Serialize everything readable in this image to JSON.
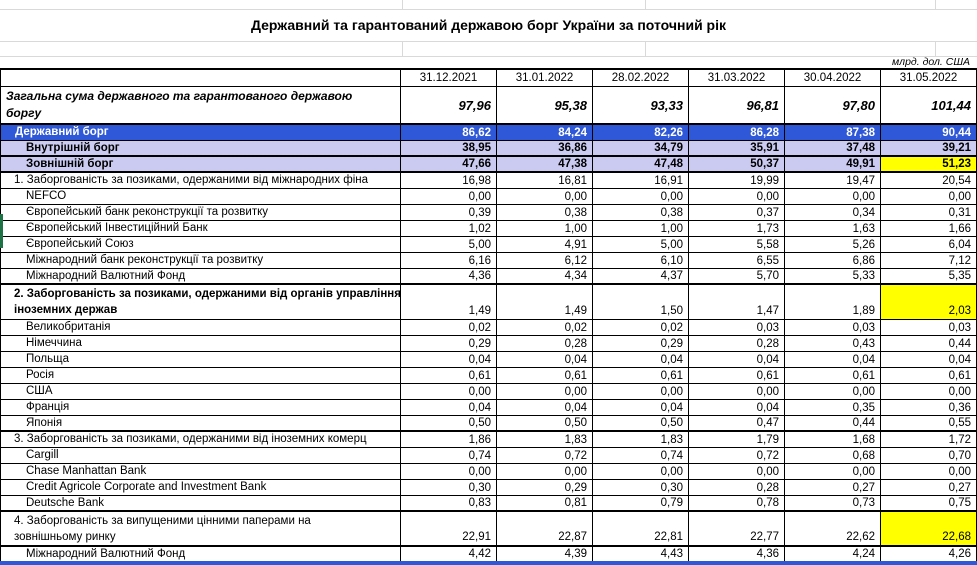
{
  "meta": {
    "title": "Державний та гарантований державою борг України за поточний рік",
    "units": "млрд. дол. США"
  },
  "colors": {
    "accent_blue": "#2F58D8",
    "lavender": "#CBCBF2",
    "highlight_yellow": "#FFFF00"
  },
  "chart_data": {
    "type": "table",
    "title": "Державний та гарантований державою борг України за поточний рік",
    "columns": [
      "31.12.2021",
      "31.01.2022",
      "28.02.2022",
      "31.03.2022",
      "30.04.2022",
      "31.05.2022"
    ]
  },
  "table": {
    "columns": [
      "31.12.2021",
      "31.01.2022",
      "28.02.2022",
      "31.03.2022",
      "30.04.2022",
      "31.05.2022"
    ],
    "rows": [
      {
        "type": "total",
        "label": [
          "Загальна сума державного та гарантованого державою",
          "боргу"
        ],
        "values": [
          "97,96",
          "95,38",
          "93,33",
          "96,81",
          "97,80",
          "101,44"
        ]
      },
      {
        "type": "state",
        "label": "Державний борг",
        "values": [
          "86,62",
          "84,24",
          "82,26",
          "86,28",
          "87,38",
          "90,44"
        ]
      },
      {
        "type": "internal",
        "label": "Внутрішній борг",
        "values": [
          "38,95",
          "36,86",
          "34,79",
          "35,91",
          "37,48",
          "39,21"
        ]
      },
      {
        "type": "external",
        "label": "Зовнішній борг",
        "values": [
          "47,66",
          "47,38",
          "47,48",
          "50,37",
          "49,91",
          "51,23"
        ],
        "yellow_last": true
      },
      {
        "type": "section",
        "label": "1. Заборгованість за позиками, одержаними від міжнародних фіна",
        "values": [
          "16,98",
          "16,81",
          "16,91",
          "19,99",
          "19,47",
          "20,54"
        ]
      },
      {
        "type": "item",
        "label": "NEFCO",
        "values": [
          "0,00",
          "0,00",
          "0,00",
          "0,00",
          "0,00",
          "0,00"
        ]
      },
      {
        "type": "item",
        "label": "Європейський банк реконструкції та розвитку",
        "values": [
          "0,39",
          "0,38",
          "0,38",
          "0,37",
          "0,34",
          "0,31"
        ]
      },
      {
        "type": "item",
        "label": "Європейський Інвестиційний Банк",
        "values": [
          "1,02",
          "1,00",
          "1,00",
          "1,73",
          "1,63",
          "1,66"
        ]
      },
      {
        "type": "item",
        "label": "Європейський Союз",
        "values": [
          "5,00",
          "4,91",
          "5,00",
          "5,58",
          "5,26",
          "6,04"
        ]
      },
      {
        "type": "item",
        "label": "Міжнародний банк реконструкції та розвитку",
        "values": [
          "6,16",
          "6,12",
          "6,10",
          "6,55",
          "6,86",
          "7,12"
        ]
      },
      {
        "type": "item-end",
        "label": "Міжнародний Валютний Фонд",
        "values": [
          "4,36",
          "4,34",
          "4,37",
          "5,70",
          "5,33",
          "5,35"
        ]
      },
      {
        "type": "section2",
        "label": [
          "2. Заборгованість за позиками, одержаними від органів управління",
          "іноземних держав"
        ],
        "values": [
          "1,49",
          "1,49",
          "1,50",
          "1,47",
          "1,89",
          "2,03"
        ],
        "yellow_last": true
      },
      {
        "type": "item",
        "label": "Великобританія",
        "values": [
          "0,02",
          "0,02",
          "0,02",
          "0,03",
          "0,03",
          "0,03"
        ]
      },
      {
        "type": "item",
        "label": "Німеччина",
        "values": [
          "0,29",
          "0,28",
          "0,29",
          "0,28",
          "0,43",
          "0,44"
        ]
      },
      {
        "type": "item",
        "label": "Польща",
        "values": [
          "0,04",
          "0,04",
          "0,04",
          "0,04",
          "0,04",
          "0,04"
        ]
      },
      {
        "type": "item",
        "label": "Росія",
        "values": [
          "0,61",
          "0,61",
          "0,61",
          "0,61",
          "0,61",
          "0,61"
        ]
      },
      {
        "type": "item",
        "label": "США",
        "values": [
          "0,00",
          "0,00",
          "0,00",
          "0,00",
          "0,00",
          "0,00"
        ]
      },
      {
        "type": "item",
        "label": "Франція",
        "values": [
          "0,04",
          "0,04",
          "0,04",
          "0,04",
          "0,35",
          "0,36"
        ]
      },
      {
        "type": "item-end",
        "label": "Японія",
        "values": [
          "0,50",
          "0,50",
          "0,50",
          "0,47",
          "0,44",
          "0,55"
        ]
      },
      {
        "type": "section",
        "label": "3. Заборгованість за позиками, одержаними від іноземних комерц",
        "values": [
          "1,86",
          "1,83",
          "1,83",
          "1,79",
          "1,68",
          "1,72"
        ]
      },
      {
        "type": "item",
        "label": "Cargill",
        "values": [
          "0,74",
          "0,72",
          "0,74",
          "0,72",
          "0,68",
          "0,70"
        ]
      },
      {
        "type": "item",
        "label": "Chase Manhattan Bank",
        "values": [
          "0,00",
          "0,00",
          "0,00",
          "0,00",
          "0,00",
          "0,00"
        ]
      },
      {
        "type": "item",
        "label": "Credit Agricole Corporate and Investment Bank",
        "values": [
          "0,30",
          "0,29",
          "0,30",
          "0,28",
          "0,27",
          "0,27"
        ]
      },
      {
        "type": "item-end",
        "label": "Deutsche Bank",
        "values": [
          "0,83",
          "0,81",
          "0,79",
          "0,78",
          "0,73",
          "0,75"
        ]
      },
      {
        "type": "section4",
        "label": [
          "4. Заборгованість за випущеними цінними паперами на",
          "зовнішньому ринку"
        ],
        "values": [
          "22,91",
          "22,87",
          "22,81",
          "22,77",
          "22,62",
          "22,68"
        ],
        "yellow_last": true
      },
      {
        "type": "imf-end",
        "label": "Міжнародний Валютний Фонд",
        "values": [
          "4,42",
          "4,39",
          "4,43",
          "4,36",
          "4,24",
          "4,26"
        ]
      }
    ]
  }
}
